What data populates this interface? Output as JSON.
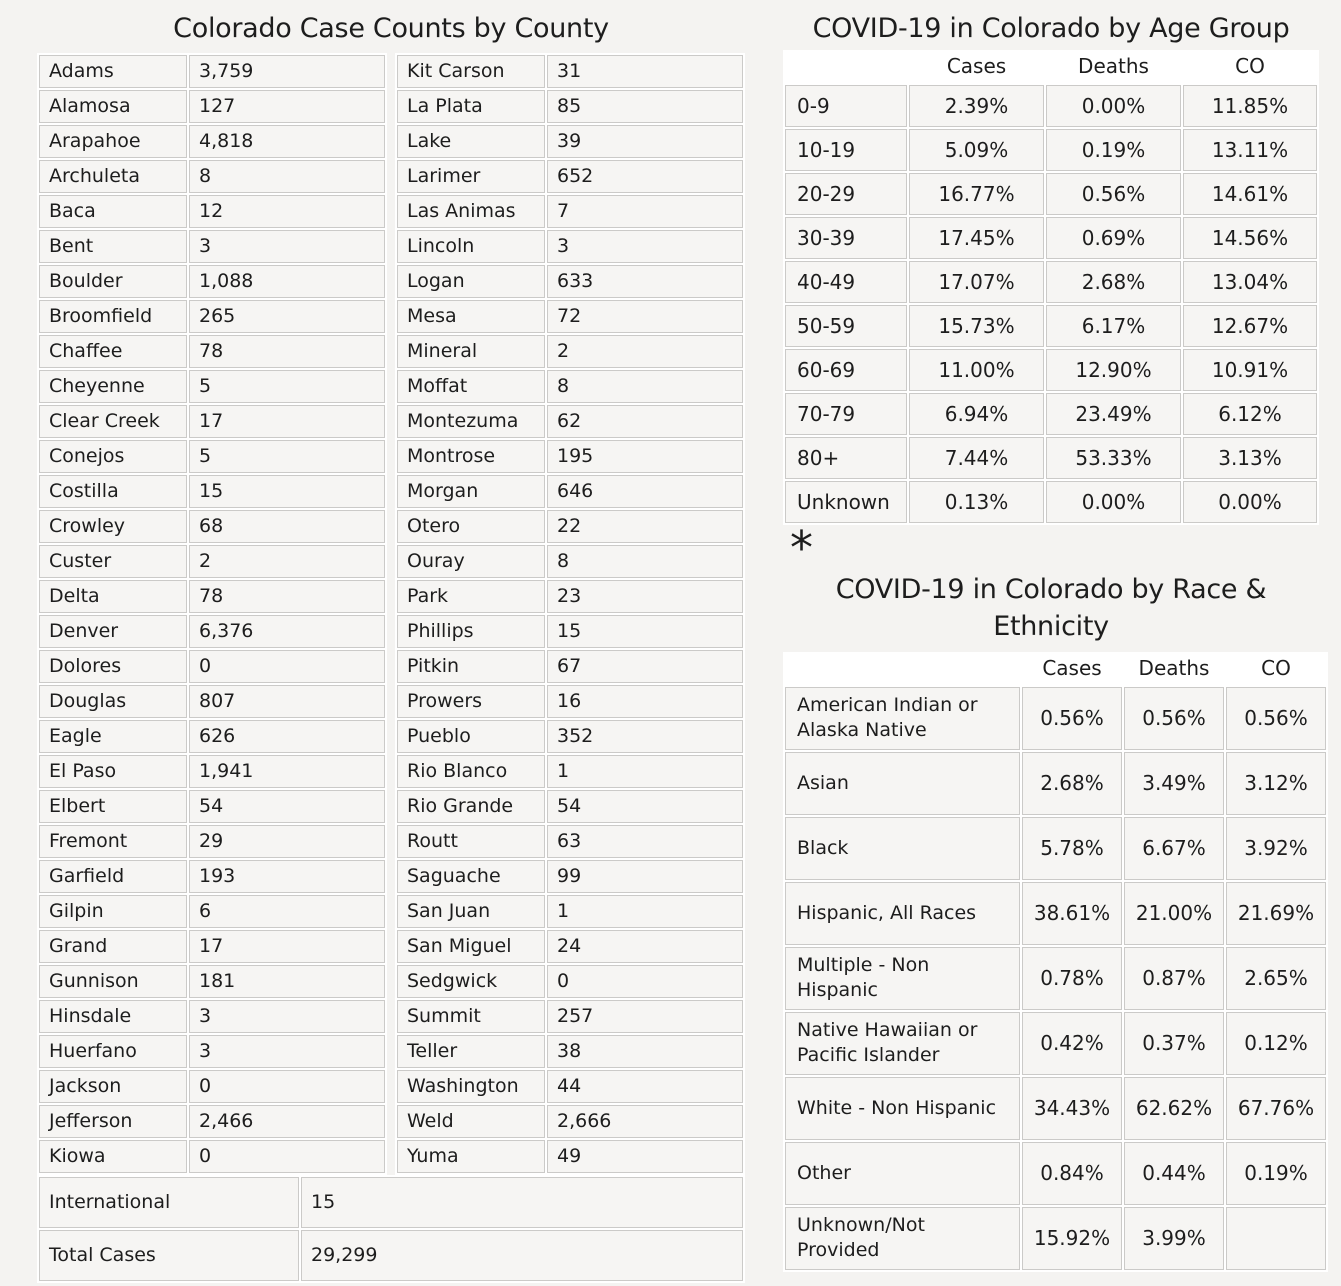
{
  "colors": {
    "page_background": "#f4f3f1",
    "cell_background": "#f6f5f3",
    "cell_border": "#cbcac8",
    "grid_gap": "#ffffff",
    "text": "#1d1d1d"
  },
  "footnote_marker": "*",
  "chart_data": [
    {
      "type": "table",
      "title": "Colorado Case Counts by County",
      "rows_left": [
        [
          "Adams",
          "3,759"
        ],
        [
          "Alamosa",
          "127"
        ],
        [
          "Arapahoe",
          "4,818"
        ],
        [
          "Archuleta",
          "8"
        ],
        [
          "Baca",
          "12"
        ],
        [
          "Bent",
          "3"
        ],
        [
          "Boulder",
          "1,088"
        ],
        [
          "Broomfield",
          "265"
        ],
        [
          "Chaffee",
          "78"
        ],
        [
          "Cheyenne",
          "5"
        ],
        [
          "Clear Creek",
          "17"
        ],
        [
          "Conejos",
          "5"
        ],
        [
          "Costilla",
          "15"
        ],
        [
          "Crowley",
          "68"
        ],
        [
          "Custer",
          "2"
        ],
        [
          "Delta",
          "78"
        ],
        [
          "Denver",
          "6,376"
        ],
        [
          "Dolores",
          "0"
        ],
        [
          "Douglas",
          "807"
        ],
        [
          "Eagle",
          "626"
        ],
        [
          "El Paso",
          "1,941"
        ],
        [
          "Elbert",
          "54"
        ],
        [
          "Fremont",
          "29"
        ],
        [
          "Garfield",
          "193"
        ],
        [
          "Gilpin",
          "6"
        ],
        [
          "Grand",
          "17"
        ],
        [
          "Gunnison",
          "181"
        ],
        [
          "Hinsdale",
          "3"
        ],
        [
          "Huerfano",
          "3"
        ],
        [
          "Jackson",
          "0"
        ],
        [
          "Jefferson",
          "2,466"
        ],
        [
          "Kiowa",
          "0"
        ]
      ],
      "rows_right": [
        [
          "Kit Carson",
          "31"
        ],
        [
          "La Plata",
          "85"
        ],
        [
          "Lake",
          "39"
        ],
        [
          "Larimer",
          "652"
        ],
        [
          "Las Animas",
          "7"
        ],
        [
          "Lincoln",
          "3"
        ],
        [
          "Logan",
          "633"
        ],
        [
          "Mesa",
          "72"
        ],
        [
          "Mineral",
          "2"
        ],
        [
          "Moffat",
          "8"
        ],
        [
          "Montezuma",
          "62"
        ],
        [
          "Montrose",
          "195"
        ],
        [
          "Morgan",
          "646"
        ],
        [
          "Otero",
          "22"
        ],
        [
          "Ouray",
          "8"
        ],
        [
          "Park",
          "23"
        ],
        [
          "Phillips",
          "15"
        ],
        [
          "Pitkin",
          "67"
        ],
        [
          "Prowers",
          "16"
        ],
        [
          "Pueblo",
          "352"
        ],
        [
          "Rio Blanco",
          "1"
        ],
        [
          "Rio Grande",
          "54"
        ],
        [
          "Routt",
          "63"
        ],
        [
          "Saguache",
          "99"
        ],
        [
          "San Juan",
          "1"
        ],
        [
          "San Miguel",
          "24"
        ],
        [
          "Sedgwick",
          "0"
        ],
        [
          "Summit",
          "257"
        ],
        [
          "Teller",
          "38"
        ],
        [
          "Washington",
          "44"
        ],
        [
          "Weld",
          "2,666"
        ],
        [
          "Yuma",
          "49"
        ]
      ],
      "footer_rows": [
        [
          "International",
          "15"
        ],
        [
          "Total Cases",
          "29,299"
        ]
      ]
    },
    {
      "type": "table",
      "title": "COVID-19 in Colorado by Age Group",
      "columns": [
        "Cases",
        "Deaths",
        "CO"
      ],
      "rows": [
        [
          "0-9",
          "2.39%",
          "0.00%",
          "11.85%"
        ],
        [
          "10-19",
          "5.09%",
          "0.19%",
          "13.11%"
        ],
        [
          "20-29",
          "16.77%",
          "0.56%",
          "14.61%"
        ],
        [
          "30-39",
          "17.45%",
          "0.69%",
          "14.56%"
        ],
        [
          "40-49",
          "17.07%",
          "2.68%",
          "13.04%"
        ],
        [
          "50-59",
          "15.73%",
          "6.17%",
          "12.67%"
        ],
        [
          "60-69",
          "11.00%",
          "12.90%",
          "10.91%"
        ],
        [
          "70-79",
          "6.94%",
          "23.49%",
          "6.12%"
        ],
        [
          "80+",
          "7.44%",
          "53.33%",
          "3.13%"
        ],
        [
          "Unknown",
          "0.13%",
          "0.00%",
          "0.00%"
        ]
      ]
    },
    {
      "type": "table",
      "title": "COVID-19 in Colorado by Race & Ethnicity",
      "columns": [
        "Cases",
        "Deaths",
        "CO"
      ],
      "rows": [
        [
          "American Indian or Alaska Native",
          "0.56%",
          "0.56%",
          "0.56%"
        ],
        [
          "Asian",
          "2.68%",
          "3.49%",
          "3.12%"
        ],
        [
          "Black",
          "5.78%",
          "6.67%",
          "3.92%"
        ],
        [
          "Hispanic, All Races",
          "38.61%",
          "21.00%",
          "21.69%"
        ],
        [
          "Multiple - Non Hispanic",
          "0.78%",
          "0.87%",
          "2.65%"
        ],
        [
          "Native Hawaiian or Pacific Islander",
          "0.42%",
          "0.37%",
          "0.12%"
        ],
        [
          "White - Non Hispanic",
          "34.43%",
          "62.62%",
          "67.76%"
        ],
        [
          "Other",
          "0.84%",
          "0.44%",
          "0.19%"
        ],
        [
          "Unknown/Not Provided",
          "15.92%",
          "3.99%",
          ""
        ]
      ]
    }
  ]
}
